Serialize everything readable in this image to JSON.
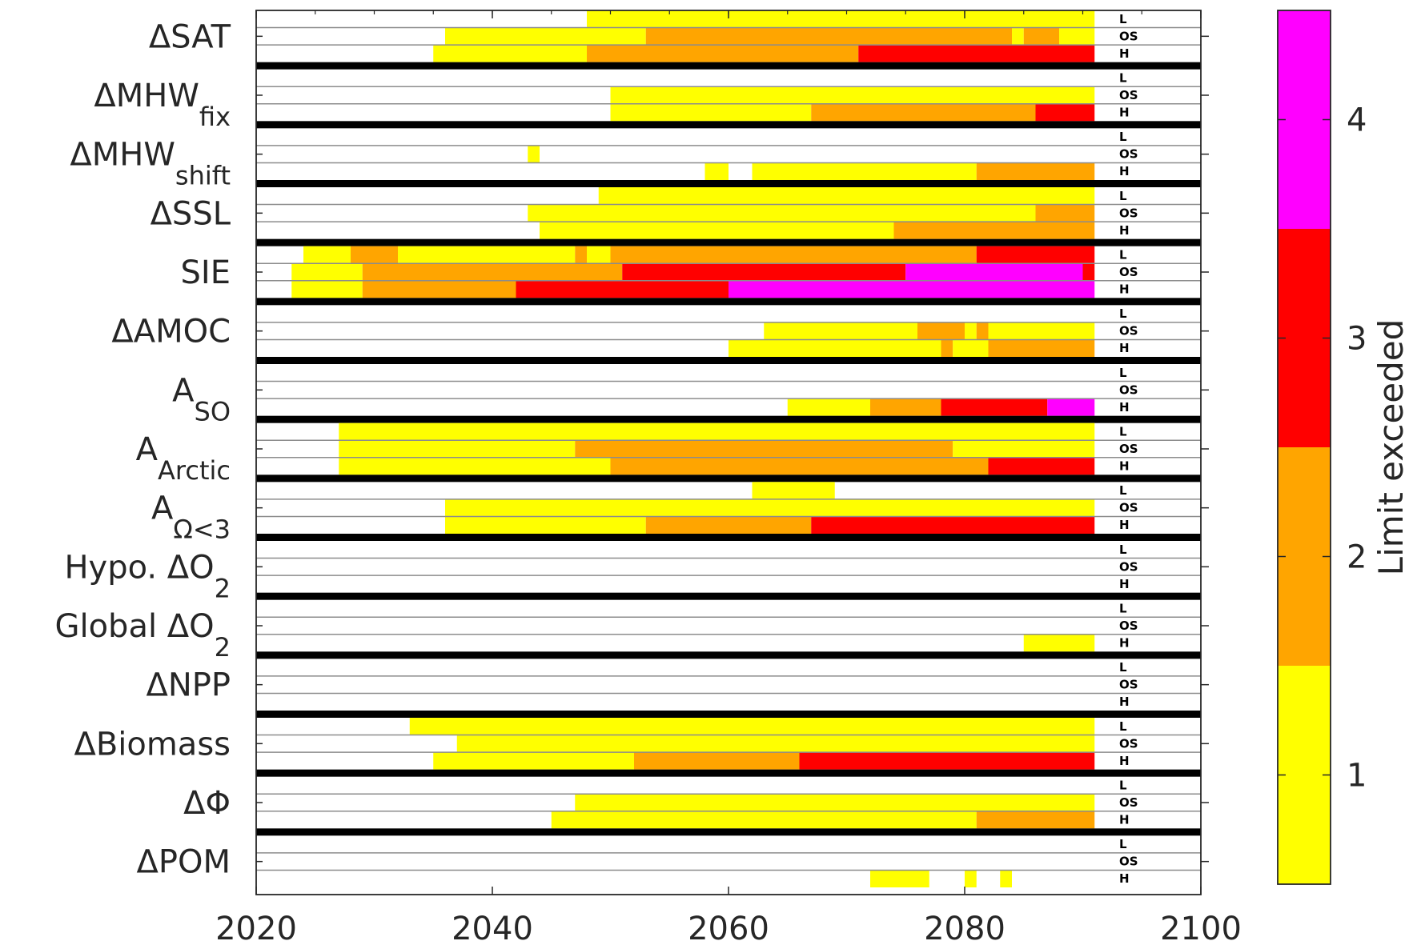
{
  "chart_data": {
    "type": "heatmap",
    "xlim": [
      2020,
      2100
    ],
    "x_ticks": [
      "2020",
      "2040",
      "2060",
      "2080",
      "2100"
    ],
    "scenario_labels": [
      "L",
      "OS",
      "H"
    ],
    "colorbar": {
      "label": "Limit exceeded",
      "ticks": [
        "1",
        "2",
        "3",
        "4"
      ],
      "levels": [
        {
          "value": 1,
          "color": "#ffff00"
        },
        {
          "value": 2,
          "color": "#ffa500"
        },
        {
          "value": 3,
          "color": "#ff0000"
        },
        {
          "value": 4,
          "color": "#ff00ff"
        }
      ]
    },
    "variables": [
      {
        "label": "ΔSAT",
        "sub": "",
        "rows": {
          "L": [
            [
              2048,
              2091,
              1
            ]
          ],
          "OS": [
            [
              2036,
              2053,
              1
            ],
            [
              2053,
              2084,
              2
            ],
            [
              2084,
              2085,
              1
            ],
            [
              2085,
              2088,
              2
            ],
            [
              2088,
              2091,
              1
            ]
          ],
          "H": [
            [
              2035,
              2048,
              1
            ],
            [
              2048,
              2071,
              2
            ],
            [
              2071,
              2091,
              3
            ]
          ]
        }
      },
      {
        "label": "ΔMHW",
        "sub": "fix",
        "rows": {
          "L": [],
          "OS": [
            [
              2050,
              2091,
              1
            ]
          ],
          "H": [
            [
              2050,
              2067,
              1
            ],
            [
              2067,
              2086,
              2
            ],
            [
              2086,
              2091,
              3
            ]
          ]
        }
      },
      {
        "label": "ΔMHW",
        "sub": "shift",
        "rows": {
          "L": [],
          "OS": [
            [
              2043,
              2044,
              1
            ]
          ],
          "H": [
            [
              2058,
              2060,
              1
            ],
            [
              2062,
              2081,
              1
            ],
            [
              2081,
              2091,
              2
            ]
          ]
        }
      },
      {
        "label": "ΔSSL",
        "sub": "",
        "rows": {
          "L": [
            [
              2049,
              2091,
              1
            ]
          ],
          "OS": [
            [
              2043,
              2086,
              1
            ],
            [
              2086,
              2091,
              2
            ]
          ],
          "H": [
            [
              2044,
              2074,
              1
            ],
            [
              2074,
              2091,
              2
            ]
          ]
        }
      },
      {
        "label": "SIE",
        "sub": "",
        "rows": {
          "L": [
            [
              2024,
              2028,
              1
            ],
            [
              2028,
              2032,
              2
            ],
            [
              2032,
              2047,
              1
            ],
            [
              2047,
              2048,
              2
            ],
            [
              2048,
              2050,
              1
            ],
            [
              2050,
              2081,
              2
            ],
            [
              2081,
              2091,
              3
            ]
          ],
          "OS": [
            [
              2023,
              2029,
              1
            ],
            [
              2029,
              2051,
              2
            ],
            [
              2051,
              2075,
              3
            ],
            [
              2075,
              2090,
              4
            ],
            [
              2090,
              2091,
              3
            ]
          ],
          "H": [
            [
              2023,
              2029,
              1
            ],
            [
              2029,
              2042,
              2
            ],
            [
              2042,
              2060,
              3
            ],
            [
              2060,
              2091,
              4
            ]
          ]
        }
      },
      {
        "label": "ΔAMOC",
        "sub": "",
        "rows": {
          "L": [],
          "OS": [
            [
              2063,
              2076,
              1
            ],
            [
              2076,
              2080,
              2
            ],
            [
              2080,
              2081,
              1
            ],
            [
              2081,
              2082,
              2
            ],
            [
              2082,
              2091,
              1
            ]
          ],
          "H": [
            [
              2060,
              2078,
              1
            ],
            [
              2078,
              2079,
              2
            ],
            [
              2079,
              2082,
              1
            ],
            [
              2082,
              2091,
              2
            ]
          ]
        }
      },
      {
        "label": "A",
        "sub": "SO",
        "rows": {
          "L": [],
          "OS": [],
          "H": [
            [
              2065,
              2072,
              1
            ],
            [
              2072,
              2078,
              2
            ],
            [
              2078,
              2087,
              3
            ],
            [
              2087,
              2091,
              4
            ]
          ]
        }
      },
      {
        "label": "A",
        "sub": "Arctic",
        "rows": {
          "L": [
            [
              2027,
              2091,
              1
            ]
          ],
          "OS": [
            [
              2027,
              2047,
              1
            ],
            [
              2047,
              2079,
              2
            ],
            [
              2079,
              2091,
              1
            ]
          ],
          "H": [
            [
              2027,
              2050,
              1
            ],
            [
              2050,
              2082,
              2
            ],
            [
              2082,
              2091,
              3
            ]
          ]
        }
      },
      {
        "label": "A",
        "sub": "Ω<3",
        "rows": {
          "L": [
            [
              2062,
              2069,
              1
            ]
          ],
          "OS": [
            [
              2036,
              2091,
              1
            ]
          ],
          "H": [
            [
              2036,
              2053,
              1
            ],
            [
              2053,
              2067,
              2
            ],
            [
              2067,
              2091,
              3
            ]
          ]
        }
      },
      {
        "label": "Hypo. ΔO",
        "sub": "2",
        "rows": {
          "L": [],
          "OS": [],
          "H": []
        }
      },
      {
        "label": "Global ΔO",
        "sub": "2",
        "rows": {
          "L": [],
          "OS": [],
          "H": [
            [
              2085,
              2091,
              1
            ]
          ]
        }
      },
      {
        "label": "ΔNPP",
        "sub": "",
        "rows": {
          "L": [],
          "OS": [],
          "H": []
        }
      },
      {
        "label": "ΔBiomass",
        "sub": "",
        "rows": {
          "L": [
            [
              2033,
              2091,
              1
            ]
          ],
          "OS": [
            [
              2037,
              2091,
              1
            ]
          ],
          "H": [
            [
              2035,
              2052,
              1
            ],
            [
              2052,
              2066,
              2
            ],
            [
              2066,
              2091,
              3
            ]
          ]
        }
      },
      {
        "label": "ΔΦ",
        "sub": "",
        "rows": {
          "L": [],
          "OS": [
            [
              2047,
              2091,
              1
            ]
          ],
          "H": [
            [
              2045,
              2081,
              1
            ],
            [
              2081,
              2091,
              2
            ]
          ]
        }
      },
      {
        "label": "ΔPOM",
        "sub": "",
        "rows": {
          "L": [],
          "OS": [],
          "H": [
            [
              2072,
              2077,
              1
            ],
            [
              2080,
              2081,
              1
            ],
            [
              2083,
              2084,
              1
            ]
          ]
        }
      }
    ]
  }
}
